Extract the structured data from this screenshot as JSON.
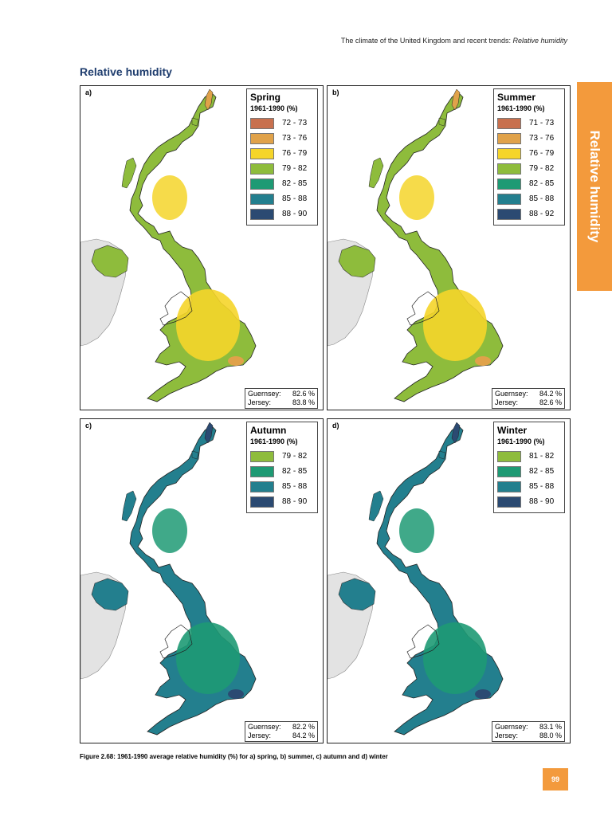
{
  "header": {
    "prefix": "The climate of the United Kingdom and recent trends: ",
    "italic": "Relative humidity"
  },
  "section_title": "Relative humidity",
  "side_tab": "Relative humidity",
  "panels": [
    {
      "label": "a)",
      "season": "Spring",
      "period": "1961-1990 (%)",
      "legend": [
        {
          "range": "72 - 73",
          "color": "#c8704e"
        },
        {
          "range": "73 - 76",
          "color": "#e0a24a"
        },
        {
          "range": "76 - 79",
          "color": "#f5d52a"
        },
        {
          "range": "79 - 82",
          "color": "#8ebc3c"
        },
        {
          "range": "82 - 85",
          "color": "#1e9a74"
        },
        {
          "range": "85 - 88",
          "color": "#237f8e"
        },
        {
          "range": "88 - 90",
          "color": "#2b4a72"
        }
      ],
      "guernsey": {
        "label": "Guernsey:",
        "value": "82.6 %"
      },
      "jersey": {
        "label": "Jersey:",
        "value": "83.8 %"
      }
    },
    {
      "label": "b)",
      "season": "Summer",
      "period": "1961-1990 (%)",
      "legend": [
        {
          "range": "71 - 73",
          "color": "#c8704e"
        },
        {
          "range": "73 - 76",
          "color": "#e0a24a"
        },
        {
          "range": "76 - 79",
          "color": "#f5d52a"
        },
        {
          "range": "79 - 82",
          "color": "#8ebc3c"
        },
        {
          "range": "82 - 85",
          "color": "#1e9a74"
        },
        {
          "range": "85 - 88",
          "color": "#237f8e"
        },
        {
          "range": "88 - 92",
          "color": "#2b4a72"
        }
      ],
      "guernsey": {
        "label": "Guernsey:",
        "value": "84.2 %"
      },
      "jersey": {
        "label": "Jersey:",
        "value": "82.6 %"
      }
    },
    {
      "label": "c)",
      "season": "Autumn",
      "period": "1961-1990 (%)",
      "legend": [
        {
          "range": "79 - 82",
          "color": "#8ebc3c"
        },
        {
          "range": "82 - 85",
          "color": "#1e9a74"
        },
        {
          "range": "85 - 88",
          "color": "#237f8e"
        },
        {
          "range": "88 - 90",
          "color": "#2b4a72"
        }
      ],
      "guernsey": {
        "label": "Guernsey:",
        "value": "82.2 %"
      },
      "jersey": {
        "label": "Jersey:",
        "value": "84.2 %"
      }
    },
    {
      "label": "d)",
      "season": "Winter",
      "period": "1961-1990 (%)",
      "legend": [
        {
          "range": "81 - 82",
          "color": "#8ebc3c"
        },
        {
          "range": "82 - 85",
          "color": "#1e9a74"
        },
        {
          "range": "85 - 88",
          "color": "#237f8e"
        },
        {
          "range": "88 - 90",
          "color": "#2b4a72"
        }
      ],
      "guernsey": {
        "label": "Guernsey:",
        "value": "83.1 %"
      },
      "jersey": {
        "label": "Jersey:",
        "value": "88.0 %"
      }
    }
  ],
  "caption": "Figure 2.68: 1961-1990 average relative humidity (%) for a) spring, b) summer, c) autumn and d) winter",
  "page_number": "99",
  "colors": {
    "accent": "#f39a3c",
    "title_blue": "#1f3d6e",
    "ireland_grey": "#e3e3e3"
  }
}
